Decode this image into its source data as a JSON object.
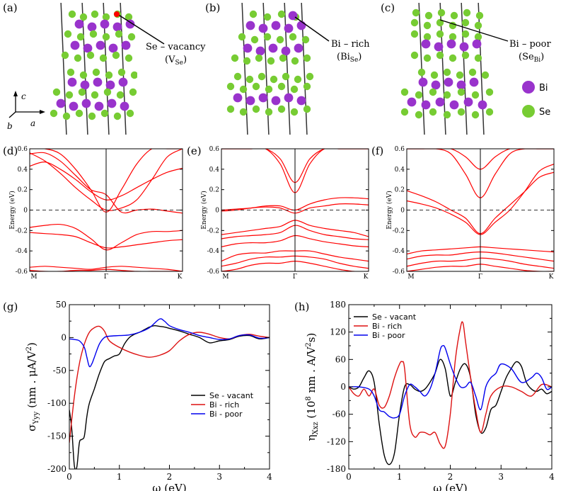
{
  "figure_labels": [
    "(a)",
    "(b)",
    "(c)",
    "(d)",
    "(e)",
    "(f)",
    "(g)",
    "(h)"
  ],
  "crystal": {
    "a": {
      "annotation": "Se – vacancy",
      "sub_label": "(V",
      "sub": "Se",
      "close": ")"
    },
    "b": {
      "annotation": "Bi – rich",
      "sub_label": "(Bi",
      "sub": "Se",
      "close": ")"
    },
    "c": {
      "annotation": "Bi – poor",
      "sub_label": "(Se",
      "sub": "Bi",
      "close": ")"
    },
    "axes": {
      "c": "c",
      "b": "b",
      "a": "a"
    },
    "legend": [
      {
        "label": "Bi",
        "color": "#9933cc"
      },
      {
        "label": "Se",
        "color": "#77cc33"
      }
    ]
  },
  "colors": {
    "band": "#ff0000",
    "se_vacant": "#000000",
    "bi_rich": "#dd1111",
    "bi_poor": "#0000ee"
  },
  "chart_data": [
    {
      "type": "line",
      "panel": "(d)",
      "title": "",
      "xlabel": "",
      "ylabel": "Energy (eV)",
      "x_ticks": [
        "M",
        "Γ",
        "K"
      ],
      "ylim": [
        -0.6,
        0.6
      ],
      "y_ticks": [
        "-0.6",
        "-0.4",
        "-0.2",
        "0",
        "0.2",
        "0.4",
        "0.6"
      ],
      "bands": [
        [
          0.43,
          0.47,
          0.4,
          0.3,
          0.18,
          0.1,
          0.14,
          0.22,
          0.3,
          0.37,
          0.41
        ],
        [
          0.56,
          0.48,
          0.36,
          0.22,
          0.1,
          0.0,
          0.02,
          0.1,
          0.3,
          0.52,
          0.6
        ],
        [
          0.6,
          0.6,
          0.55,
          0.4,
          0.2,
          -0.02,
          0.2,
          0.45,
          0.6,
          0.6,
          0.6
        ],
        [
          0.55,
          0.56,
          0.48,
          0.34,
          0.2,
          0.15,
          -0.02,
          0.0,
          0.01,
          -0.01,
          -0.03
        ],
        [
          -0.17,
          -0.15,
          -0.14,
          -0.18,
          -0.28,
          -0.39,
          -0.32,
          -0.24,
          -0.21,
          -0.21,
          -0.2
        ],
        [
          -0.22,
          -0.23,
          -0.24,
          -0.26,
          -0.32,
          -0.37,
          -0.36,
          -0.34,
          -0.32,
          -0.3,
          -0.29
        ],
        [
          -0.56,
          -0.55,
          -0.56,
          -0.57,
          -0.58,
          -0.56,
          -0.55,
          -0.56,
          -0.57,
          -0.58,
          -0.6
        ],
        [
          -0.59,
          -0.6,
          -0.6,
          -0.59,
          -0.59,
          -0.58,
          -0.59,
          -0.6,
          -0.6,
          -0.6,
          -0.6
        ]
      ]
    },
    {
      "type": "line",
      "panel": "(e)",
      "title": "",
      "xlabel": "",
      "ylabel": "Energy (eV)",
      "x_ticks": [
        "M",
        "Γ",
        "K"
      ],
      "ylim": [
        -0.6,
        0.6
      ],
      "y_ticks": [
        "-0.6",
        "-0.4",
        "-0.2",
        "0",
        "0.2",
        "0.4",
        "0.6"
      ],
      "bands": [
        [
          0.6,
          0.6,
          0.6,
          0.6,
          0.45,
          0.17,
          0.45,
          0.6,
          0.6,
          0.6,
          0.6
        ],
        [
          0.6,
          0.6,
          0.6,
          0.6,
          0.5,
          0.27,
          0.5,
          0.6,
          0.6,
          0.6,
          0.6
        ],
        [
          0.0,
          0.01,
          0.02,
          0.04,
          0.04,
          0.0,
          0.06,
          0.1,
          0.12,
          0.12,
          0.11
        ],
        [
          -0.01,
          0.0,
          0.02,
          0.03,
          0.02,
          -0.03,
          0.02,
          0.04,
          0.06,
          0.06,
          0.05
        ],
        [
          -0.24,
          -0.22,
          -0.2,
          -0.18,
          -0.16,
          -0.1,
          -0.15,
          -0.18,
          -0.2,
          -0.22,
          -0.26
        ],
        [
          -0.28,
          -0.26,
          -0.25,
          -0.24,
          -0.22,
          -0.15,
          -0.2,
          -0.24,
          -0.26,
          -0.28,
          -0.29
        ],
        [
          -0.36,
          -0.33,
          -0.32,
          -0.32,
          -0.3,
          -0.25,
          -0.28,
          -0.31,
          -0.33,
          -0.35,
          -0.36
        ],
        [
          -0.5,
          -0.44,
          -0.42,
          -0.42,
          -0.4,
          -0.4,
          -0.4,
          -0.43,
          -0.46,
          -0.48,
          -0.5
        ],
        [
          -0.55,
          -0.52,
          -0.48,
          -0.46,
          -0.46,
          -0.45,
          -0.46,
          -0.48,
          -0.52,
          -0.55,
          -0.57
        ],
        [
          -0.6,
          -0.58,
          -0.54,
          -0.52,
          -0.52,
          -0.5,
          -0.52,
          -0.55,
          -0.58,
          -0.6,
          -0.6
        ]
      ]
    },
    {
      "type": "line",
      "panel": "(f)",
      "title": "",
      "xlabel": "",
      "ylabel": "Energy (eV)",
      "x_ticks": [
        "M",
        "Γ",
        "K"
      ],
      "ylim": [
        -0.6,
        0.6
      ],
      "y_ticks": [
        "-0.6",
        "-0.4",
        "-0.2",
        "0",
        "0.2",
        "0.4",
        "0.6"
      ],
      "bands": [
        [
          0.6,
          0.6,
          0.6,
          0.55,
          0.35,
          0.12,
          0.35,
          0.55,
          0.6,
          0.6,
          0.6
        ],
        [
          0.6,
          0.6,
          0.6,
          0.6,
          0.52,
          0.4,
          0.52,
          0.6,
          0.6,
          0.6,
          0.6
        ],
        [
          0.19,
          0.14,
          0.08,
          0.0,
          -0.08,
          -0.23,
          -0.08,
          0.05,
          0.18,
          0.32,
          0.37
        ],
        [
          0.09,
          0.06,
          0.02,
          -0.04,
          -0.12,
          -0.24,
          -0.12,
          0.0,
          0.18,
          0.38,
          0.45
        ],
        [
          -0.43,
          -0.4,
          -0.39,
          -0.38,
          -0.37,
          -0.36,
          -0.37,
          -0.38,
          -0.39,
          -0.4,
          -0.41
        ],
        [
          -0.48,
          -0.45,
          -0.44,
          -0.44,
          -0.42,
          -0.41,
          -0.42,
          -0.44,
          -0.46,
          -0.48,
          -0.5
        ],
        [
          -0.55,
          -0.52,
          -0.5,
          -0.5,
          -0.49,
          -0.47,
          -0.48,
          -0.5,
          -0.53,
          -0.55,
          -0.57
        ],
        [
          -0.6,
          -0.58,
          -0.56,
          -0.55,
          -0.55,
          -0.53,
          -0.55,
          -0.57,
          -0.59,
          -0.6,
          -0.6
        ]
      ]
    },
    {
      "type": "line",
      "panel": "(g)",
      "title": "",
      "xlabel": "ω (eV)",
      "ylabel_main": "σ",
      "ylabel_sub": "Yyy",
      "ylabel_unit": "(nm . μA/V",
      "ylabel_sup": "2",
      "ylabel_close": ")",
      "xlim": [
        0,
        4
      ],
      "ylim": [
        -200,
        50
      ],
      "x_ticks": [
        "0",
        "1",
        "2",
        "3",
        "4"
      ],
      "y_ticks": [
        "-200",
        "-150",
        "-100",
        "-50",
        "0",
        "50"
      ],
      "legend_position": "lower-right",
      "series": [
        {
          "name": "Se - vacant",
          "color": "#000000",
          "x": [
            0,
            0.05,
            0.1,
            0.15,
            0.2,
            0.25,
            0.3,
            0.35,
            0.4,
            0.5,
            0.6,
            0.7,
            0.8,
            0.9,
            1.0,
            1.1,
            1.2,
            1.3,
            1.4,
            1.5,
            1.6,
            1.7,
            1.8,
            1.9,
            2.0,
            2.2,
            2.4,
            2.6,
            2.8,
            3.0,
            3.2,
            3.4,
            3.6,
            3.8,
            4.0
          ],
          "values": [
            -110,
            -140,
            -195,
            -197,
            -160,
            -155,
            -150,
            -120,
            -100,
            -78,
            -55,
            -37,
            -32,
            -28,
            -25,
            -10,
            0,
            5,
            8,
            12,
            16,
            18,
            17,
            16,
            14,
            10,
            5,
            0,
            -8,
            -5,
            -3,
            2,
            3,
            -2,
            0
          ]
        },
        {
          "name": "Bi - rich",
          "color": "#dd1111",
          "x": [
            0,
            0.1,
            0.2,
            0.3,
            0.4,
            0.5,
            0.6,
            0.7,
            0.8,
            1.0,
            1.2,
            1.4,
            1.6,
            1.8,
            2.0,
            2.2,
            2.4,
            2.6,
            2.8,
            3.0,
            3.2,
            3.4,
            3.6,
            3.8,
            4.0
          ],
          "values": [
            -160,
            -90,
            -40,
            -10,
            8,
            15,
            17,
            10,
            -5,
            -15,
            -22,
            -27,
            -30,
            -27,
            -20,
            -5,
            5,
            8,
            5,
            0,
            -2,
            3,
            5,
            2,
            0
          ]
        },
        {
          "name": "Bi - poor",
          "color": "#0000ee",
          "x": [
            0,
            0.1,
            0.2,
            0.3,
            0.35,
            0.4,
            0.45,
            0.5,
            0.6,
            0.7,
            0.8,
            1.0,
            1.2,
            1.4,
            1.6,
            1.8,
            1.9,
            2.0,
            2.2,
            2.4,
            2.6,
            2.8,
            3.0,
            3.2,
            3.4,
            3.6,
            3.8,
            4.0
          ],
          "values": [
            -2,
            -3,
            -5,
            -15,
            -30,
            -44,
            -40,
            -30,
            -10,
            0,
            2,
            3,
            4,
            8,
            15,
            28,
            25,
            18,
            12,
            8,
            3,
            0,
            -3,
            -2,
            3,
            4,
            -1,
            0
          ]
        }
      ]
    },
    {
      "type": "line",
      "panel": "(h)",
      "title": "",
      "xlabel": "ω (eV)",
      "ylabel_main": "η",
      "ylabel_sub": "Xxz",
      "ylabel_unit": "(10",
      "ylabel_sup": "8",
      "ylabel_mid": " nm . A/V",
      "ylabel_sup2": "2",
      "ylabel_close": "s)",
      "xlim": [
        0,
        4
      ],
      "ylim": [
        -180,
        180
      ],
      "x_ticks": [
        "0",
        "1",
        "2",
        "3",
        "4"
      ],
      "y_ticks": [
        "-180",
        "-120",
        "-60",
        "0",
        "60",
        "120",
        "180"
      ],
      "legend_position": "upper-left",
      "series": [
        {
          "name": "Se - vacant",
          "color": "#000000",
          "x": [
            0,
            0.1,
            0.2,
            0.3,
            0.4,
            0.5,
            0.6,
            0.7,
            0.8,
            0.9,
            1.0,
            1.1,
            1.2,
            1.3,
            1.4,
            1.5,
            1.6,
            1.7,
            1.8,
            1.9,
            2.0,
            2.1,
            2.2,
            2.3,
            2.4,
            2.5,
            2.6,
            2.7,
            2.8,
            2.9,
            3.0,
            3.1,
            3.2,
            3.3,
            3.4,
            3.5,
            3.6,
            3.7,
            3.8,
            3.9,
            4.0
          ],
          "values": [
            0,
            -5,
            0,
            20,
            35,
            10,
            -80,
            -150,
            -170,
            -145,
            -60,
            0,
            5,
            -5,
            -10,
            -5,
            10,
            30,
            60,
            40,
            -20,
            10,
            40,
            50,
            20,
            -60,
            -100,
            -90,
            -50,
            -40,
            -10,
            20,
            40,
            55,
            45,
            10,
            -5,
            -10,
            -5,
            -15,
            -10
          ]
        },
        {
          "name": "Bi - rich",
          "color": "#dd1111",
          "x": [
            0,
            0.1,
            0.2,
            0.3,
            0.4,
            0.5,
            0.6,
            0.7,
            0.8,
            0.9,
            1.0,
            1.05,
            1.1,
            1.2,
            1.3,
            1.4,
            1.5,
            1.6,
            1.7,
            1.8,
            1.9,
            2.0,
            2.1,
            2.2,
            2.25,
            2.3,
            2.4,
            2.5,
            2.6,
            2.7,
            2.8,
            3.0,
            3.2,
            3.4,
            3.6,
            3.8,
            4.0
          ],
          "values": [
            0,
            -15,
            -20,
            -5,
            -20,
            -5,
            -40,
            -45,
            -20,
            20,
            50,
            55,
            40,
            -80,
            -110,
            -100,
            -100,
            -105,
            -100,
            -125,
            -130,
            -60,
            60,
            130,
            140,
            100,
            20,
            -50,
            -100,
            -60,
            -20,
            0,
            0,
            -10,
            -20,
            5,
            0
          ]
        },
        {
          "name": "Bi - poor",
          "color": "#0000ee",
          "x": [
            0,
            0.2,
            0.4,
            0.5,
            0.6,
            0.7,
            0.8,
            0.9,
            1.0,
            1.1,
            1.2,
            1.3,
            1.4,
            1.5,
            1.6,
            1.7,
            1.8,
            1.85,
            1.9,
            2.0,
            2.1,
            2.2,
            2.3,
            2.4,
            2.5,
            2.6,
            2.7,
            2.8,
            2.9,
            3.0,
            3.2,
            3.4,
            3.6,
            3.7,
            3.8,
            3.9,
            4.0
          ],
          "values": [
            0,
            0,
            -5,
            -20,
            -50,
            -55,
            -65,
            -68,
            -60,
            -20,
            5,
            0,
            -10,
            -20,
            -5,
            30,
            80,
            90,
            85,
            50,
            20,
            0,
            0,
            10,
            -20,
            -50,
            0,
            20,
            30,
            50,
            40,
            10,
            20,
            30,
            20,
            -5,
            0
          ]
        }
      ]
    }
  ]
}
